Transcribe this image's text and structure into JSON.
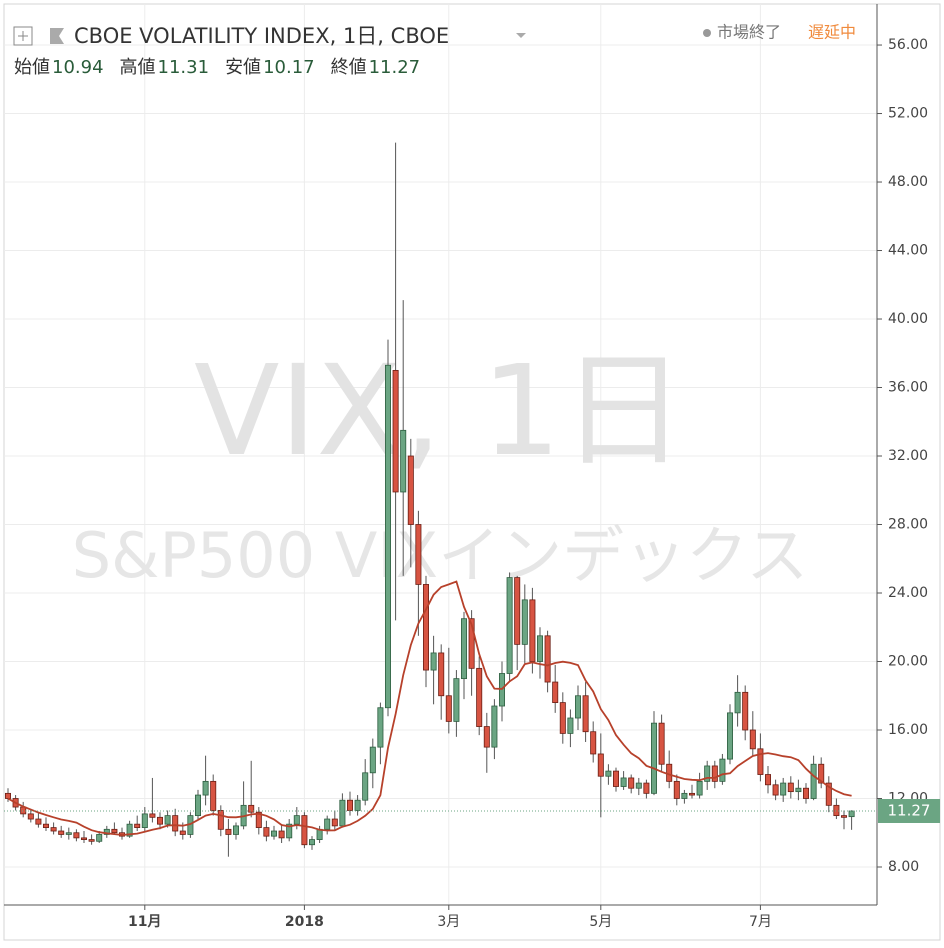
{
  "chart_data": {
    "type": "candlestick",
    "title": "CBOE VOLATILITY INDEX, 1日, CBOE",
    "ohlc_labels": [
      "始値",
      "高値",
      "安値",
      "終値"
    ],
    "status": "市場終了",
    "delay": "遅延中",
    "watermark": "VIX, 1日",
    "watermark_subtitle": "S&P500 VIXインデックス",
    "up_color": "#6ba583",
    "down_color": "#d75442",
    "ma_color": "#b7412b",
    "grid": true,
    "ylim": [
      5.78,
      58.63
    ],
    "yticks": [
      {
        "value": 8,
        "label": "8.00"
      },
      {
        "value": 12,
        "label": "12.00"
      },
      {
        "value": 16,
        "label": "16.00"
      },
      {
        "value": 20,
        "label": "20.00"
      },
      {
        "value": 24,
        "label": "24.00"
      },
      {
        "value": 28,
        "label": "28.00"
      },
      {
        "value": 32,
        "label": "32.00"
      },
      {
        "value": 36,
        "label": "36.00"
      },
      {
        "value": 40,
        "label": "40.00"
      },
      {
        "value": 44,
        "label": "44.00"
      },
      {
        "value": 48,
        "label": "48.00"
      },
      {
        "value": 52,
        "label": "52.00"
      },
      {
        "value": 56,
        "label": "56.00"
      }
    ],
    "categories": [
      null,
      null,
      null,
      null,
      null,
      null,
      null,
      null,
      null,
      null,
      null,
      null,
      null,
      null,
      null,
      null,
      null,
      null,
      "11月",
      null,
      null,
      null,
      null,
      null,
      null,
      null,
      null,
      null,
      null,
      null,
      null,
      null,
      null,
      null,
      null,
      null,
      null,
      null,
      null,
      "2018",
      null,
      null,
      null,
      null,
      null,
      null,
      null,
      null,
      null,
      null,
      null,
      null,
      null,
      null,
      null,
      null,
      null,
      null,
      "3月",
      null,
      null,
      null,
      null,
      null,
      null,
      null,
      null,
      null,
      null,
      null,
      null,
      null,
      null,
      null,
      null,
      null,
      null,
      null,
      "5月",
      null,
      null,
      null,
      null,
      null,
      null,
      null,
      null,
      null,
      null,
      null,
      null,
      null,
      null,
      null,
      null,
      null,
      null,
      null,
      null,
      "7月",
      null,
      null,
      null,
      null,
      null,
      null,
      null,
      null,
      null,
      null,
      null,
      null
    ],
    "ohlc": [
      [
        12.3,
        12.6,
        11.8,
        12.0
      ],
      [
        12.0,
        12.2,
        11.3,
        11.5
      ],
      [
        11.5,
        11.8,
        10.9,
        11.1
      ],
      [
        11.1,
        11.4,
        10.6,
        10.8
      ],
      [
        10.8,
        11.2,
        10.3,
        10.5
      ],
      [
        10.5,
        10.9,
        10.1,
        10.3
      ],
      [
        10.3,
        10.6,
        9.9,
        10.1
      ],
      [
        10.1,
        10.4,
        9.7,
        9.9
      ],
      [
        9.9,
        10.3,
        9.6,
        10.0
      ],
      [
        10.0,
        10.2,
        9.5,
        9.7
      ],
      [
        9.7,
        10.1,
        9.4,
        9.6
      ],
      [
        9.6,
        9.9,
        9.3,
        9.5
      ],
      [
        9.5,
        10.1,
        9.4,
        9.9
      ],
      [
        9.9,
        10.4,
        9.7,
        10.2
      ],
      [
        10.2,
        10.6,
        9.9,
        10.0
      ],
      [
        10.0,
        10.3,
        9.6,
        9.8
      ],
      [
        9.8,
        10.7,
        9.7,
        10.5
      ],
      [
        10.5,
        11.0,
        10.1,
        10.3
      ],
      [
        10.3,
        11.5,
        10.1,
        11.1
      ],
      [
        11.1,
        13.2,
        10.6,
        10.9
      ],
      [
        10.9,
        11.2,
        10.2,
        10.5
      ],
      [
        10.5,
        11.3,
        10.3,
        11.0
      ],
      [
        11.0,
        11.4,
        9.8,
        10.1
      ],
      [
        10.1,
        10.6,
        9.6,
        9.9
      ],
      [
        9.9,
        11.2,
        9.7,
        11.0
      ],
      [
        11.0,
        12.5,
        10.8,
        12.2
      ],
      [
        12.2,
        14.5,
        11.6,
        13.0
      ],
      [
        13.0,
        13.4,
        11.0,
        11.3
      ],
      [
        11.3,
        11.6,
        9.8,
        10.2
      ],
      [
        10.2,
        10.8,
        8.6,
        9.9
      ],
      [
        9.9,
        10.6,
        9.6,
        10.4
      ],
      [
        10.4,
        13.0,
        10.2,
        11.6
      ],
      [
        11.6,
        14.2,
        10.9,
        11.2
      ],
      [
        11.2,
        11.5,
        9.9,
        10.3
      ],
      [
        10.3,
        10.7,
        9.5,
        9.8
      ],
      [
        9.8,
        10.4,
        9.6,
        10.1
      ],
      [
        10.1,
        10.5,
        9.4,
        9.7
      ],
      [
        9.7,
        10.8,
        9.5,
        10.5
      ],
      [
        10.5,
        11.5,
        10.2,
        11.0
      ],
      [
        11.0,
        11.2,
        9.1,
        9.3
      ],
      [
        9.3,
        9.8,
        9.0,
        9.6
      ],
      [
        9.6,
        10.4,
        9.4,
        10.2
      ],
      [
        10.2,
        11.0,
        9.9,
        10.8
      ],
      [
        10.8,
        11.3,
        10.1,
        10.4
      ],
      [
        10.4,
        12.3,
        10.3,
        11.9
      ],
      [
        11.9,
        12.4,
        11.0,
        11.3
      ],
      [
        11.3,
        12.2,
        11.0,
        11.9
      ],
      [
        11.9,
        14.3,
        11.6,
        13.5
      ],
      [
        13.5,
        15.5,
        12.6,
        15.0
      ],
      [
        15.0,
        17.6,
        14.0,
        17.3
      ],
      [
        17.3,
        38.8,
        16.8,
        37.3
      ],
      [
        37.0,
        50.3,
        22.4,
        29.9
      ],
      [
        29.9,
        41.1,
        25.0,
        33.5
      ],
      [
        32.0,
        33.0,
        25.5,
        28.0
      ],
      [
        28.0,
        28.8,
        21.5,
        24.5
      ],
      [
        24.5,
        25.0,
        18.5,
        19.5
      ],
      [
        19.5,
        21.5,
        17.5,
        20.5
      ],
      [
        20.5,
        21.0,
        16.6,
        18.0
      ],
      [
        18.0,
        20.8,
        15.8,
        16.5
      ],
      [
        16.5,
        19.5,
        15.6,
        19.0
      ],
      [
        19.0,
        22.9,
        17.8,
        22.5
      ],
      [
        22.5,
        23.0,
        18.0,
        19.6
      ],
      [
        19.6,
        20.3,
        15.7,
        16.2
      ],
      [
        16.2,
        17.0,
        13.5,
        15.0
      ],
      [
        15.0,
        17.8,
        14.3,
        17.4
      ],
      [
        17.4,
        20.0,
        16.5,
        19.3
      ],
      [
        19.3,
        25.2,
        18.8,
        24.9
      ],
      [
        24.9,
        25.0,
        19.5,
        21.0
      ],
      [
        21.0,
        24.5,
        19.9,
        23.6
      ],
      [
        23.6,
        24.3,
        19.3,
        20.0
      ],
      [
        20.0,
        22.0,
        19.0,
        21.5
      ],
      [
        21.5,
        21.8,
        18.2,
        18.8
      ],
      [
        18.8,
        19.8,
        17.0,
        17.6
      ],
      [
        17.6,
        18.2,
        15.2,
        15.8
      ],
      [
        15.8,
        17.2,
        15.0,
        16.7
      ],
      [
        16.7,
        18.6,
        16.0,
        18.0
      ],
      [
        18.0,
        18.8,
        15.3,
        15.9
      ],
      [
        15.9,
        16.5,
        14.1,
        14.6
      ],
      [
        14.6,
        15.8,
        10.9,
        13.3
      ],
      [
        13.3,
        14.0,
        12.8,
        13.6
      ],
      [
        13.6,
        13.8,
        12.4,
        12.7
      ],
      [
        12.7,
        13.6,
        12.5,
        13.2
      ],
      [
        13.2,
        13.4,
        12.3,
        12.6
      ],
      [
        12.6,
        13.2,
        12.2,
        12.9
      ],
      [
        12.9,
        13.1,
        12.0,
        12.3
      ],
      [
        12.3,
        17.1,
        12.2,
        16.4
      ],
      [
        16.4,
        16.9,
        13.6,
        14.0
      ],
      [
        14.0,
        14.8,
        12.6,
        13.0
      ],
      [
        13.0,
        13.4,
        11.6,
        12.0
      ],
      [
        12.0,
        12.5,
        11.7,
        12.3
      ],
      [
        12.3,
        12.8,
        12.0,
        12.2
      ],
      [
        12.2,
        13.5,
        12.0,
        13.0
      ],
      [
        13.0,
        14.2,
        12.5,
        13.9
      ],
      [
        13.9,
        14.2,
        12.6,
        13.0
      ],
      [
        13.0,
        14.6,
        12.8,
        14.3
      ],
      [
        14.3,
        17.5,
        14.0,
        17.0
      ],
      [
        17.0,
        19.2,
        16.2,
        18.2
      ],
      [
        18.2,
        18.6,
        15.4,
        16.0
      ],
      [
        16.0,
        17.1,
        14.5,
        14.9
      ],
      [
        14.9,
        15.8,
        13.0,
        13.4
      ],
      [
        13.4,
        13.9,
        12.3,
        12.8
      ],
      [
        12.8,
        13.1,
        11.9,
        12.2
      ],
      [
        12.2,
        13.2,
        11.8,
        12.9
      ],
      [
        12.9,
        13.3,
        12.0,
        12.4
      ],
      [
        12.4,
        13.1,
        11.9,
        12.6
      ],
      [
        12.6,
        12.9,
        11.7,
        12.0
      ],
      [
        12.0,
        14.5,
        11.9,
        14.0
      ],
      [
        14.0,
        14.4,
        12.6,
        12.9
      ],
      [
        12.9,
        13.3,
        11.2,
        11.6
      ],
      [
        11.6,
        12.0,
        10.8,
        11.0
      ],
      [
        11.0,
        11.3,
        10.2,
        10.9
      ],
      [
        10.94,
        11.31,
        10.17,
        11.27
      ]
    ]
  }
}
